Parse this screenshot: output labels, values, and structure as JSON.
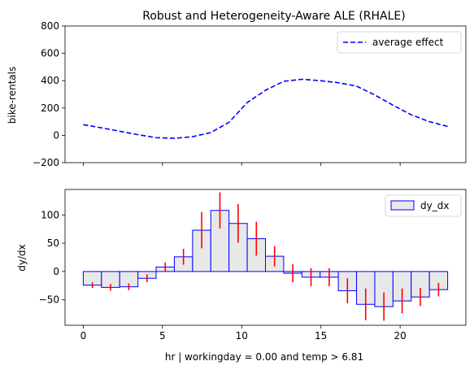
{
  "chart_data": [
    {
      "type": "line",
      "title": "Robust and Heterogeneity-Aware ALE (RHALE)",
      "ylabel": "bike-rentals",
      "xlabel": "",
      "xlim": [
        -1.15,
        24.15
      ],
      "ylim": [
        -200,
        800
      ],
      "yticks": [
        -200,
        0,
        200,
        400,
        600,
        800
      ],
      "xticks": [
        0,
        5,
        10,
        15,
        20
      ],
      "x_tick_labels_shown": false,
      "legend": "top-right",
      "series": [
        {
          "name": "average effect",
          "color": "#0000ff",
          "style": "dashed",
          "x": [
            0,
            1.15,
            2.3,
            3.45,
            4.6,
            5.75,
            6.9,
            8.05,
            9.2,
            10.35,
            11.5,
            12.65,
            13.8,
            14.95,
            16.1,
            17.25,
            18.4,
            19.55,
            20.7,
            21.85,
            23
          ],
          "y": [
            78,
            55,
            30,
            5,
            -17,
            -22,
            -10,
            20,
            95,
            240,
            330,
            395,
            410,
            400,
            385,
            360,
            295,
            220,
            150,
            100,
            65
          ]
        }
      ]
    },
    {
      "type": "bar",
      "title": "",
      "ylabel": "dy/dx",
      "xlabel": "hr | workingday = 0.00 and temp > 6.81",
      "xlim": [
        -1.15,
        24.15
      ],
      "ylim": [
        -95,
        145
      ],
      "yticks": [
        -50,
        0,
        50,
        100
      ],
      "xticks": [
        0,
        5,
        10,
        15,
        20
      ],
      "legend": "top-right",
      "bar_fill": "#e8e8e8",
      "bar_edge": "#0000ff",
      "error_color": "#ff0000",
      "series": [
        {
          "name": "dy_dx",
          "bin_edges": [
            0,
            1.15,
            2.3,
            3.45,
            4.6,
            5.75,
            6.9,
            8.05,
            9.2,
            10.35,
            11.5,
            12.65,
            13.8,
            14.95,
            16.1,
            17.25,
            18.4,
            19.55,
            20.7,
            21.85,
            23
          ],
          "values": [
            -24,
            -28,
            -27,
            -12,
            8,
            26,
            73,
            108,
            85,
            58,
            27,
            -3,
            -10,
            -10,
            -34,
            -58,
            -62,
            -52,
            -45,
            -32
          ],
          "error": [
            5,
            6,
            6,
            7,
            8,
            14,
            32,
            32,
            34,
            30,
            18,
            16,
            16,
            16,
            22,
            28,
            25,
            22,
            16,
            12
          ]
        }
      ]
    }
  ]
}
